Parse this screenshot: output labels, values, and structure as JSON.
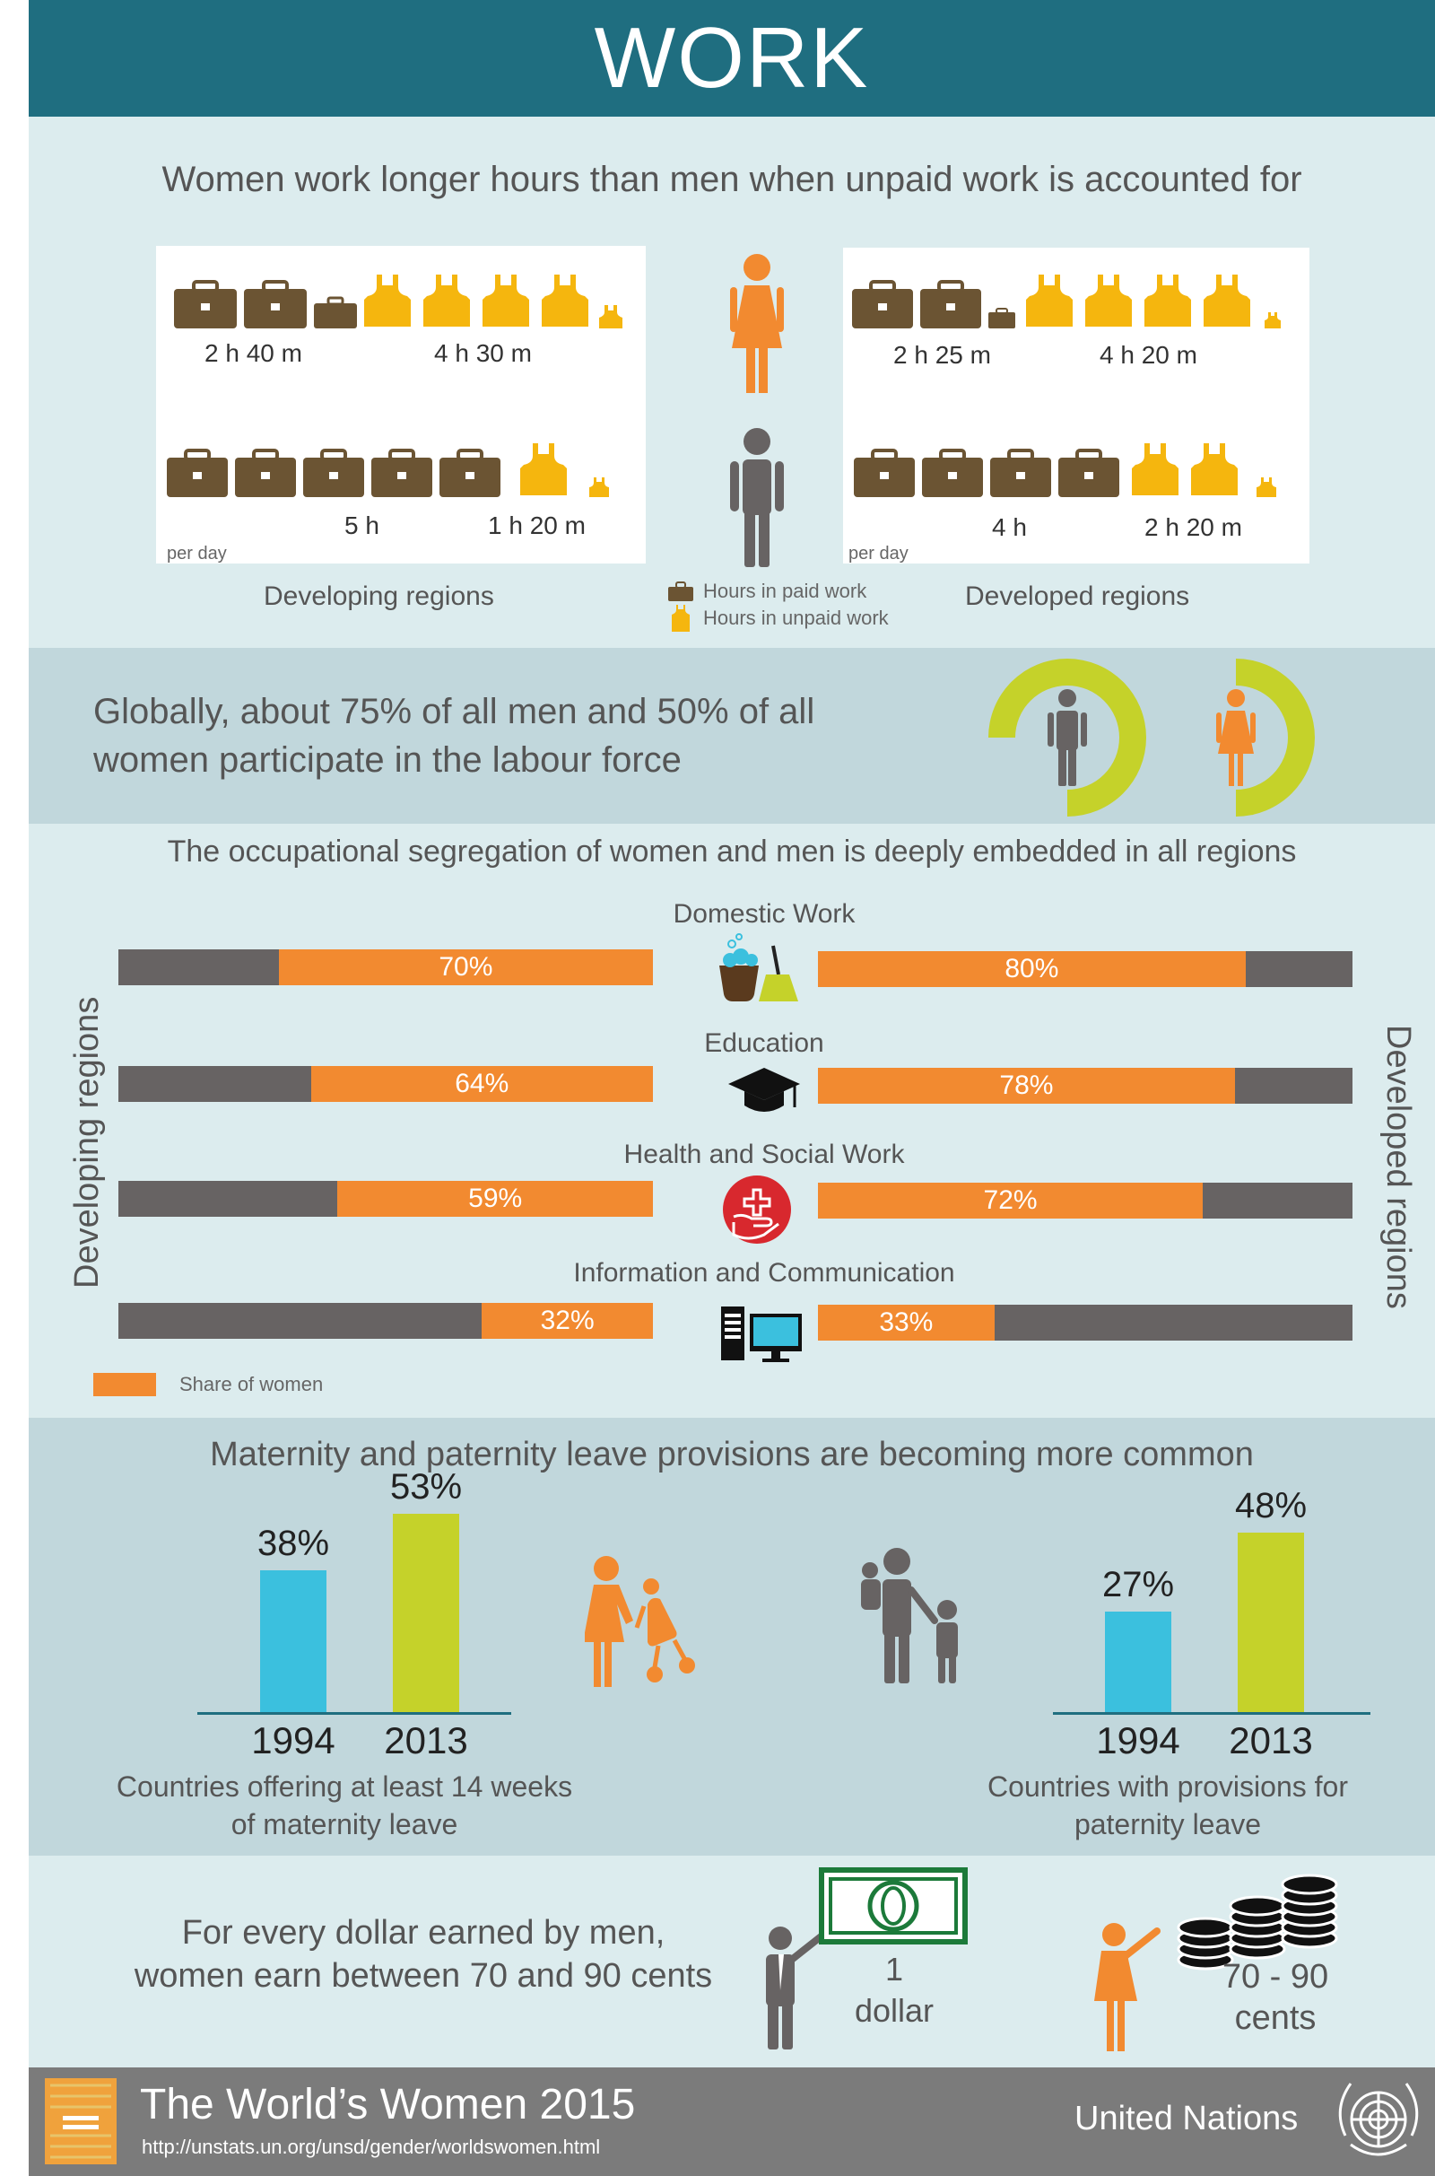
{
  "header": {
    "title": "WORK"
  },
  "hours": {
    "title": "Women work longer hours than men when unpaid work is accounted for",
    "developing": {
      "label": "Developing regions",
      "per_day": "per day",
      "women_paid": "2 h 40 m",
      "women_unpaid": "4 h 30 m",
      "men_paid": "5 h",
      "men_unpaid": "1 h 20 m"
    },
    "developed": {
      "label": "Developed regions",
      "per_day": "per day",
      "women_paid": "2 h 25 m",
      "women_unpaid": "4 h 20 m",
      "men_paid": "4 h",
      "men_unpaid": "2 h 20 m"
    },
    "legend": {
      "paid": "Hours in paid work",
      "unpaid": "Hours in unpaid work"
    }
  },
  "labour": {
    "text_line1": "Globally, about 75% of all men and 50% of all",
    "text_line2": "women participate in the labour force",
    "men_share": 0.75,
    "women_share": 0.5
  },
  "segregation": {
    "title": "The occupational segregation of women and men is deeply embedded in all regions",
    "left_label": "Developing regions",
    "right_label": "Developed regions",
    "legend": "Share of women"
  },
  "leave": {
    "title": "Maternity and paternity leave provisions are becoming more common",
    "maternity_caption_line1": "Countries offering at least 14 weeks",
    "maternity_caption_line2": "of maternity leave",
    "paternity_caption_line1": "Countries with provisions for",
    "paternity_caption_line2": "paternity leave"
  },
  "pay": {
    "text_line1": "For every dollar earned by men,",
    "text_line2": "women earn between 70 and 90 cents",
    "dollar_line1": "1",
    "dollar_line2": "dollar",
    "cents_line1": "70 - 90",
    "cents_line2": "cents"
  },
  "footer": {
    "title": "The World’s Women 2015",
    "url": "http://unstats.un.org/unsd/gender/worldswomen.html",
    "org": "United Nations"
  },
  "colors": {
    "teal_header": "#1f6e80",
    "women": "#f28a30",
    "men": "#676363",
    "paid": "#6b5433",
    "unpaid": "#f5b60e",
    "lime": "#c5d22a",
    "cyan": "#3bc0de"
  },
  "chart_data": [
    {
      "type": "bar",
      "title": "The occupational segregation of women and men is deeply embedded in all regions",
      "categories": [
        "Domestic Work",
        "Education",
        "Health and Social Work",
        "Information and Communication"
      ],
      "series": [
        {
          "name": "Developing regions",
          "values": [
            70,
            64,
            59,
            32
          ],
          "labels": [
            "70%",
            "64%",
            "59%",
            "32%"
          ]
        },
        {
          "name": "Developed regions",
          "values": [
            80,
            78,
            72,
            33
          ],
          "labels": [
            "80%",
            "78%",
            "72%",
            "33%"
          ]
        }
      ],
      "ylim": [
        0,
        100
      ],
      "legend": "Share of women"
    },
    {
      "type": "bar",
      "caption": "Countries offering at least 14 weeks of maternity leave",
      "categories": [
        "1994",
        "2013"
      ],
      "values": [
        38,
        53
      ],
      "labels": [
        "38%",
        "53%"
      ],
      "ylim": [
        0,
        60
      ]
    },
    {
      "type": "bar",
      "caption": "Countries with provisions for paternity leave",
      "categories": [
        "1994",
        "2013"
      ],
      "values": [
        27,
        48
      ],
      "labels": [
        "27%",
        "48%"
      ],
      "ylim": [
        0,
        60
      ]
    }
  ]
}
